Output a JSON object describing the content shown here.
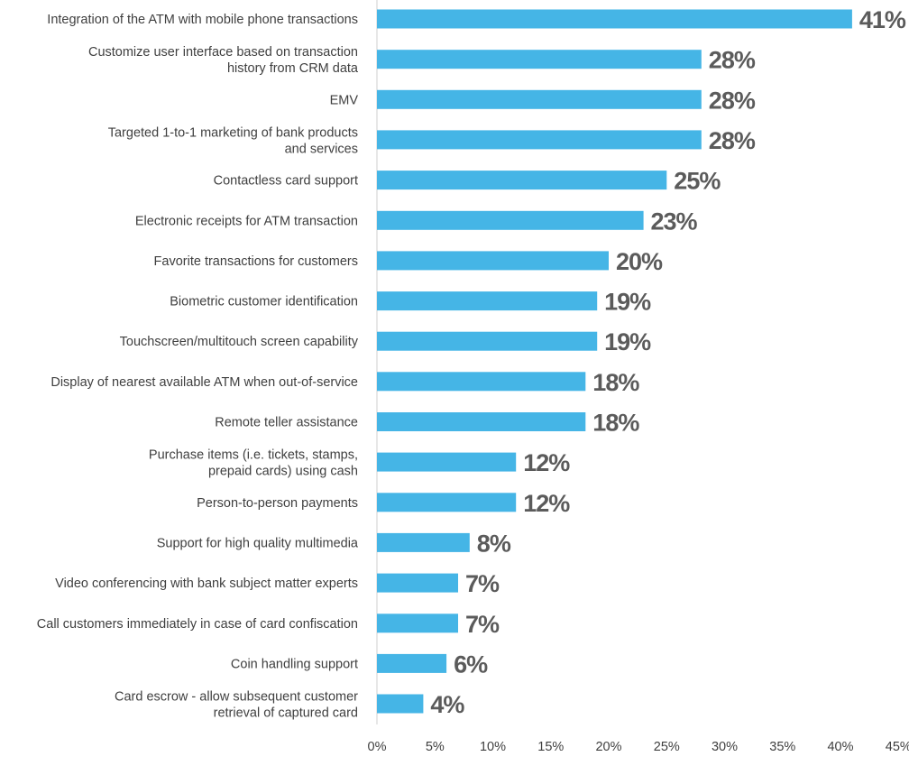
{
  "chart_data": {
    "type": "bar",
    "orientation": "horizontal",
    "bar_color": "#45b5e6",
    "xlim": [
      0,
      45
    ],
    "xticks": [
      "0%",
      "5%",
      "10%",
      "15%",
      "20%",
      "25%",
      "30%",
      "35%",
      "40%",
      "45%"
    ],
    "categories": [
      [
        "Integration of the ATM with mobile phone transactions"
      ],
      [
        "Customize user interface based on transaction",
        "history from CRM data"
      ],
      [
        "EMV"
      ],
      [
        "Targeted 1-to-1 marketing of bank products",
        "and services"
      ],
      [
        "Contactless card support"
      ],
      [
        "Electronic receipts for ATM transaction"
      ],
      [
        "Favorite transactions for customers"
      ],
      [
        "Biometric customer identification"
      ],
      [
        "Touchscreen/multitouch screen capability"
      ],
      [
        "Display of nearest available ATM when out-of-service"
      ],
      [
        "Remote teller assistance"
      ],
      [
        "Purchase items (i.e. tickets, stamps,",
        "prepaid cards) using cash"
      ],
      [
        "Person-to-person payments"
      ],
      [
        "Support for high quality multimedia"
      ],
      [
        "Video conferencing with bank subject matter experts"
      ],
      [
        "Call customers immediately in case of card confiscation"
      ],
      [
        "Coin handling support"
      ],
      [
        "Card escrow - allow subsequent customer",
        "retrieval of captured card"
      ]
    ],
    "values": [
      41,
      28,
      28,
      28,
      25,
      23,
      20,
      19,
      19,
      18,
      18,
      12,
      12,
      8,
      7,
      7,
      6,
      4
    ],
    "value_labels": [
      "41%",
      "28%",
      "28%",
      "28%",
      "25%",
      "23%",
      "20%",
      "19%",
      "19%",
      "18%",
      "18%",
      "12%",
      "12%",
      "8%",
      "7%",
      "7%",
      "6%",
      "4%"
    ]
  }
}
